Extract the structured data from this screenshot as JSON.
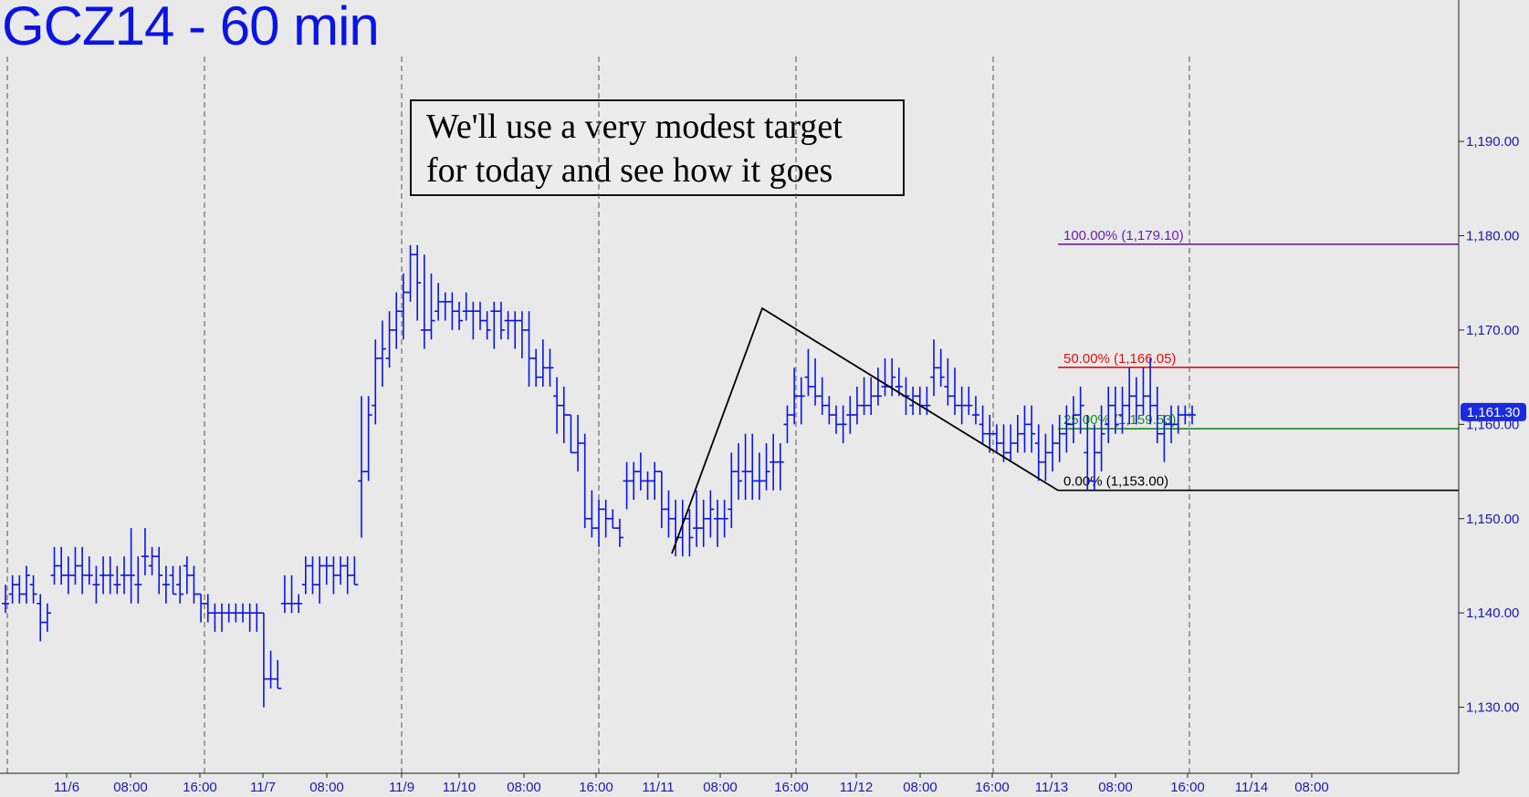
{
  "chart_data": {
    "type": "ohlc",
    "title": "GCZ14 - 60 min",
    "annotation": [
      "We'll use a very modest target",
      "for today and see how it goes"
    ],
    "y_ticks": [
      "1,130.00",
      "1,140.00",
      "1,150.00",
      "1,160.00",
      "1,170.00",
      "1,180.00",
      "1,190.00"
    ],
    "y_tick_values": [
      1130,
      1140,
      1150,
      1160,
      1170,
      1180,
      1190
    ],
    "ylim": [
      1123,
      1199
    ],
    "x_ticks": [
      "11/6",
      "08:00",
      "16:00",
      "11/7",
      "08:00",
      "11/9",
      "11/10",
      "08:00",
      "16:00",
      "11/11",
      "08:00",
      "16:00",
      "11/12",
      "08:00",
      "16:00",
      "11/13",
      "08:00",
      "16:00",
      "11/14",
      "08:00"
    ],
    "last_price": "1,161.30",
    "last_price_value": 1161.3,
    "colors": {
      "bars": "#0a14e6",
      "background": "#e9e9e9",
      "fib_100": "#6a1fb0",
      "fib_50": "#e01010",
      "fib_25": "#1a8a1a",
      "fib_0": "#000000"
    },
    "fib_levels": [
      {
        "label": "100.00% (1,179.10)",
        "value": 1179.1,
        "color": "#6a1fb0"
      },
      {
        "label": "50.00% (1,166.05)",
        "value": 1166.05,
        "color": "#e01010"
      },
      {
        "label": "25.00% (1,159.53)",
        "value": 1159.53,
        "color": "#1a8a1a"
      },
      {
        "label": "0.00% (1,153.00)",
        "value": 1153.0,
        "color": "#000000"
      }
    ],
    "abc_pattern": [
      {
        "x": "11/11 03:00",
        "y": 1146.3
      },
      {
        "x": "11/11 12:00",
        "y": 1172.3
      },
      {
        "x": "11/13 00:00",
        "y": 1153.0
      }
    ],
    "ohlc": [
      [
        1141,
        1143,
        1140,
        1141
      ],
      [
        1142,
        1144,
        1141,
        1143
      ],
      [
        1143,
        1144,
        1141,
        1142
      ],
      [
        1142,
        1145,
        1141,
        1144
      ],
      [
        1143,
        1144,
        1141,
        1142
      ],
      [
        1141,
        1142,
        1137,
        1139
      ],
      [
        1139,
        1141,
        1138,
        1140
      ],
      [
        1144,
        1147,
        1143,
        1145
      ],
      [
        1145,
        1147,
        1143,
        1144
      ],
      [
        1144,
        1146,
        1142,
        1144
      ],
      [
        1144,
        1147,
        1143,
        1145
      ],
      [
        1145,
        1147,
        1142,
        1144
      ],
      [
        1144,
        1146,
        1143,
        1144
      ],
      [
        1143,
        1145,
        1141,
        1143
      ],
      [
        1144,
        1146,
        1142,
        1144
      ],
      [
        1144,
        1146,
        1142,
        1144
      ],
      [
        1143,
        1145,
        1142,
        1143
      ],
      [
        1144,
        1146,
        1142,
        1144
      ],
      [
        1144,
        1149,
        1141,
        1144
      ],
      [
        1143,
        1146,
        1141,
        1143
      ],
      [
        1146,
        1149,
        1144,
        1146
      ],
      [
        1145,
        1147,
        1144,
        1146
      ],
      [
        1146,
        1147,
        1142,
        1144
      ],
      [
        1143,
        1145,
        1141,
        1143
      ],
      [
        1144,
        1145,
        1142,
        1142
      ],
      [
        1143,
        1145,
        1141,
        1142
      ],
      [
        1145,
        1146,
        1142,
        1144
      ],
      [
        1144,
        1145,
        1141,
        1142
      ],
      [
        1142,
        1142,
        1139,
        1141
      ],
      [
        1141,
        1142,
        1139,
        1140
      ],
      [
        1140,
        1141,
        1138,
        1140
      ],
      [
        1140,
        1141,
        1138,
        1140
      ],
      [
        1140,
        1141,
        1139,
        1140
      ],
      [
        1140,
        1141,
        1139,
        1140
      ],
      [
        1140,
        1141,
        1139,
        1140
      ],
      [
        1140,
        1141,
        1138,
        1140
      ],
      [
        1140,
        1141,
        1138,
        1140
      ],
      [
        1140,
        1140,
        1130,
        1133
      ],
      [
        1133,
        1136,
        1132,
        1133
      ],
      [
        1133,
        1135,
        1132,
        1132
      ],
      [
        1141,
        1144,
        1140,
        1141
      ],
      [
        1141,
        1144,
        1140,
        1141
      ],
      [
        1141,
        1142,
        1140,
        1141
      ],
      [
        1143,
        1146,
        1142,
        1145
      ],
      [
        1145,
        1146,
        1142,
        1143
      ],
      [
        1143,
        1146,
        1141,
        1145
      ],
      [
        1145,
        1146,
        1143,
        1145
      ],
      [
        1145,
        1146,
        1142,
        1144
      ],
      [
        1144,
        1146,
        1143,
        1145
      ],
      [
        1145,
        1146,
        1142,
        1144
      ],
      [
        1144,
        1146,
        1143,
        1143
      ],
      [
        1154,
        1163,
        1148,
        1155
      ],
      [
        1155,
        1163,
        1154,
        1161
      ],
      [
        1162,
        1169,
        1160,
        1167
      ],
      [
        1167,
        1171,
        1164,
        1168
      ],
      [
        1167,
        1172,
        1166,
        1170
      ],
      [
        1170,
        1174,
        1168,
        1172
      ],
      [
        1172,
        1176,
        1169,
        1174
      ],
      [
        1174,
        1179,
        1173,
        1178
      ],
      [
        1178,
        1179,
        1171,
        1175
      ],
      [
        1170,
        1178,
        1168,
        1170
      ],
      [
        1170,
        1176,
        1169,
        1171
      ],
      [
        1172,
        1175,
        1171,
        1173
      ],
      [
        1173,
        1174,
        1171,
        1173
      ],
      [
        1173,
        1174,
        1170,
        1172
      ],
      [
        1172,
        1173,
        1170,
        1171
      ],
      [
        1172,
        1174,
        1171,
        1172
      ],
      [
        1172,
        1173,
        1169,
        1172
      ],
      [
        1172,
        1173,
        1170,
        1171
      ],
      [
        1171,
        1172,
        1169,
        1170
      ],
      [
        1172,
        1173,
        1168,
        1172
      ],
      [
        1172,
        1173,
        1169,
        1170
      ],
      [
        1171,
        1172,
        1169,
        1171
      ],
      [
        1171,
        1172,
        1168,
        1171
      ],
      [
        1171,
        1172,
        1167,
        1170
      ],
      [
        1170,
        1172,
        1164,
        1167
      ],
      [
        1167,
        1168,
        1164,
        1165
      ],
      [
        1165,
        1169,
        1164,
        1166
      ],
      [
        1166,
        1168,
        1164,
        1166
      ],
      [
        1163,
        1165,
        1159,
        1162
      ],
      [
        1162,
        1164,
        1158,
        1161
      ],
      [
        1161,
        1161,
        1157,
        1157
      ],
      [
        1157,
        1161,
        1155,
        1158
      ],
      [
        1158,
        1159,
        1149,
        1150
      ],
      [
        1150,
        1153,
        1148,
        1149
      ],
      [
        1149,
        1152,
        1147,
        1151
      ],
      [
        1151,
        1152,
        1148,
        1150
      ],
      [
        1150,
        1151,
        1149,
        1149
      ],
      [
        1149,
        1150,
        1147,
        1148
      ],
      [
        1154,
        1156,
        1151,
        1154
      ],
      [
        1154,
        1156,
        1152,
        1155
      ],
      [
        1155,
        1157,
        1153,
        1154
      ],
      [
        1154,
        1155,
        1152,
        1154
      ],
      [
        1154,
        1156,
        1152,
        1155
      ],
      [
        1155,
        1155,
        1149,
        1151
      ],
      [
        1151,
        1153,
        1148,
        1150
      ],
      [
        1150,
        1152,
        1146,
        1148
      ],
      [
        1148,
        1152,
        1146,
        1150
      ],
      [
        1150,
        1151,
        1146,
        1148
      ],
      [
        1149,
        1153,
        1147,
        1149
      ],
      [
        1149,
        1152,
        1147,
        1150
      ],
      [
        1150,
        1153,
        1148,
        1151
      ],
      [
        1150,
        1152,
        1147,
        1150
      ],
      [
        1150,
        1152,
        1148,
        1150
      ],
      [
        1151,
        1157,
        1149,
        1155
      ],
      [
        1155,
        1158,
        1152,
        1154
      ],
      [
        1155,
        1159,
        1152,
        1155
      ],
      [
        1155,
        1159,
        1152,
        1154
      ],
      [
        1154,
        1157,
        1152,
        1154
      ],
      [
        1154,
        1158,
        1153,
        1155
      ],
      [
        1156,
        1159,
        1153,
        1156
      ],
      [
        1156,
        1158,
        1153,
        1156
      ],
      [
        1160,
        1162,
        1158,
        1161
      ],
      [
        1161,
        1166,
        1160,
        1163
      ],
      [
        1163,
        1165,
        1160,
        1163
      ],
      [
        1165,
        1168,
        1163,
        1164
      ],
      [
        1164,
        1167,
        1162,
        1163
      ],
      [
        1163,
        1165,
        1161,
        1162
      ],
      [
        1162,
        1163,
        1160,
        1161
      ],
      [
        1161,
        1162,
        1159,
        1160
      ],
      [
        1160,
        1162,
        1158,
        1160
      ],
      [
        1161,
        1163,
        1159,
        1161
      ],
      [
        1161,
        1164,
        1160,
        1162
      ],
      [
        1162,
        1165,
        1161,
        1162
      ],
      [
        1162,
        1165,
        1161,
        1163
      ],
      [
        1163,
        1166,
        1162,
        1163
      ],
      [
        1164,
        1167,
        1163,
        1164
      ],
      [
        1164,
        1167,
        1163,
        1165
      ],
      [
        1164,
        1166,
        1163,
        1164
      ],
      [
        1163,
        1165,
        1161,
        1163
      ],
      [
        1162,
        1164,
        1161,
        1163
      ],
      [
        1163,
        1164,
        1161,
        1162
      ],
      [
        1162,
        1164,
        1161,
        1162
      ],
      [
        1165,
        1169,
        1163,
        1166
      ],
      [
        1166,
        1168,
        1164,
        1165
      ],
      [
        1164,
        1167,
        1162,
        1163
      ],
      [
        1163,
        1166,
        1161,
        1162
      ],
      [
        1162,
        1164,
        1160,
        1162
      ],
      [
        1162,
        1164,
        1161,
        1162
      ],
      [
        1161,
        1163,
        1160,
        1161
      ],
      [
        1160,
        1162,
        1158,
        1159
      ],
      [
        1159,
        1161,
        1157,
        1159
      ],
      [
        1159,
        1160,
        1157,
        1158
      ],
      [
        1158,
        1160,
        1156,
        1157
      ],
      [
        1157,
        1160,
        1156,
        1158
      ],
      [
        1158,
        1161,
        1157,
        1159
      ],
      [
        1159,
        1162,
        1157,
        1160
      ],
      [
        1160,
        1162,
        1157,
        1159
      ],
      [
        1158,
        1160,
        1154,
        1156
      ],
      [
        1156,
        1159,
        1154,
        1157
      ],
      [
        1157,
        1160,
        1155,
        1158
      ],
      [
        1158,
        1161,
        1156,
        1159
      ],
      [
        1159,
        1162,
        1157,
        1160
      ],
      [
        1160,
        1163,
        1158,
        1161
      ],
      [
        1161,
        1164,
        1159,
        1162
      ],
      [
        1157,
        1161,
        1153,
        1154
      ],
      [
        1154,
        1160,
        1153,
        1157
      ],
      [
        1157,
        1162,
        1155,
        1159
      ],
      [
        1160,
        1164,
        1158,
        1162
      ],
      [
        1162,
        1164,
        1159,
        1160
      ],
      [
        1161,
        1164,
        1159,
        1162
      ],
      [
        1162,
        1166,
        1160,
        1163
      ],
      [
        1163,
        1165,
        1160,
        1162
      ],
      [
        1162,
        1166,
        1161,
        1163
      ],
      [
        1163,
        1167,
        1160,
        1162
      ],
      [
        1162,
        1164,
        1158,
        1159
      ],
      [
        1159,
        1161,
        1156,
        1160
      ],
      [
        1160,
        1162,
        1158,
        1160
      ],
      [
        1160,
        1162,
        1159,
        1161
      ],
      [
        1161,
        1162,
        1160,
        1161
      ],
      [
        1161,
        1162,
        1160,
        1161
      ]
    ]
  }
}
